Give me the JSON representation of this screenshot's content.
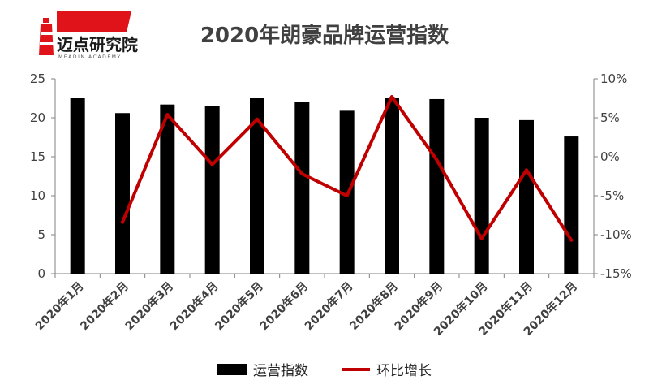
{
  "logo": {
    "name": "迈点研究院",
    "subtitle": "MEADIN ACADEMY",
    "accent_color": "#e0131b"
  },
  "chart_data": {
    "type": "bar",
    "title": "2020年朗豪品牌运营指数",
    "categories": [
      "2020年1月",
      "2020年2月",
      "2020年3月",
      "2020年4月",
      "2020年5月",
      "2020年6月",
      "2020年7月",
      "2020年8月",
      "2020年9月",
      "2020年10月",
      "2020年11月",
      "2020年12月"
    ],
    "series": [
      {
        "name": "运营指数",
        "type": "bar",
        "axis": "left",
        "color": "#000000",
        "values": [
          22.5,
          20.6,
          21.7,
          21.5,
          22.5,
          22.0,
          20.9,
          22.5,
          22.4,
          20.0,
          19.7,
          17.6
        ]
      },
      {
        "name": "环比增长",
        "type": "line",
        "axis": "right",
        "color": "#c00000",
        "values": [
          null,
          -8.4,
          5.4,
          -1.0,
          4.8,
          -2.2,
          -5.0,
          7.7,
          -0.4,
          -10.5,
          -1.7,
          -10.7
        ]
      }
    ],
    "left_axis": {
      "min": 0,
      "max": 25,
      "ticks": [
        "0",
        "5",
        "10",
        "15",
        "20",
        "25"
      ]
    },
    "right_axis": {
      "min": -15,
      "max": 10,
      "ticks": [
        "-15%",
        "-10%",
        "-5%",
        "0%",
        "5%",
        "10%"
      ]
    },
    "legend_position": "bottom",
    "grid": false
  }
}
